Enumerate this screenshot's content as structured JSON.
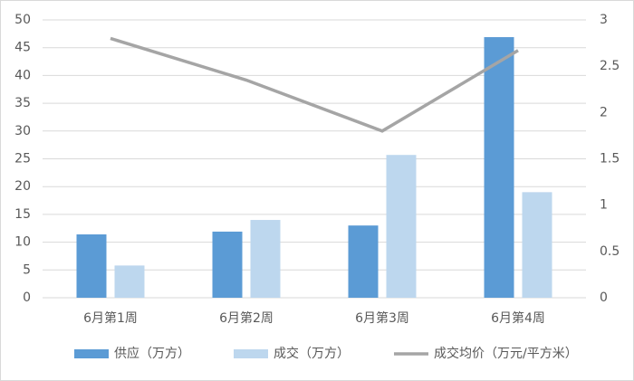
{
  "chart_data": {
    "type": "bar",
    "categories": [
      "6月第1周",
      "6月第2周",
      "6月第3周",
      "6月第4周"
    ],
    "series": [
      {
        "name": "供应（万方）",
        "color": "#5b9bd5",
        "values": [
          11.4,
          11.9,
          13.0,
          46.9
        ]
      },
      {
        "name": "成交（万方）",
        "color": "#bdd7ee",
        "values": [
          5.8,
          14.0,
          25.7,
          19.0
        ]
      },
      {
        "name": "成交均价（万元/平方米）",
        "color": "#a5a5a5",
        "type": "line",
        "axis": "y2",
        "values": [
          2.8,
          2.35,
          1.8,
          2.67
        ]
      }
    ],
    "ylim": [
      0,
      50
    ],
    "yticks": [
      0,
      5,
      10,
      15,
      20,
      25,
      30,
      35,
      40,
      45,
      50
    ],
    "y2lim": [
      0,
      3
    ],
    "y2ticks": [
      0,
      0.5,
      1,
      1.5,
      2,
      2.5,
      3
    ],
    "grid": true,
    "legend": "bottom"
  }
}
